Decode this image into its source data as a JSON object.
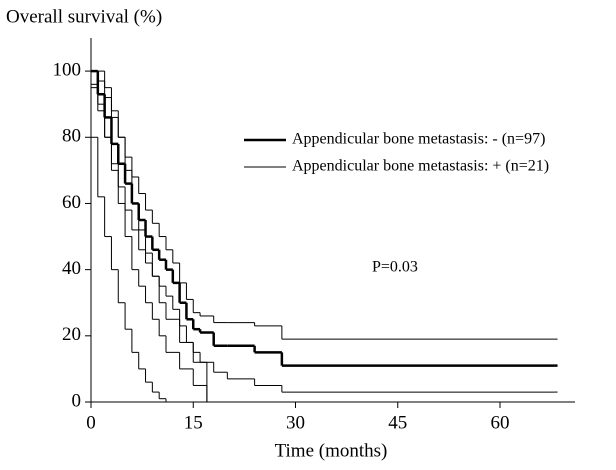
{
  "chart_data": {
    "type": "step",
    "ylabel": "Overall survival (%)",
    "xlabel": "Time (months)",
    "annotation": "P=0.03",
    "xlim": [
      0,
      71
    ],
    "ylim": [
      0,
      110
    ],
    "xticks": [
      0,
      15,
      30,
      45,
      60
    ],
    "yticks": [
      0,
      20,
      40,
      60,
      80,
      100
    ],
    "legend": "upper right",
    "series": [
      {
        "name": "Appendicular bone metastasis: - (n=97)",
        "color": "#000000",
        "width": 2.5,
        "x": [
          0,
          1,
          2,
          3,
          4,
          5,
          6,
          7,
          8,
          9,
          10,
          11,
          12,
          13,
          14,
          15,
          16,
          18,
          20,
          24,
          28,
          68
        ],
        "values": [
          100,
          93,
          86,
          78,
          72,
          66,
          60,
          55,
          50,
          46,
          43,
          40,
          36,
          30,
          25,
          22,
          21,
          17,
          17,
          15,
          11,
          11
        ]
      },
      {
        "name": "Appendicular bone metastasis: + (n=21)",
        "color": "#000000",
        "width": 1,
        "x": [
          0,
          1,
          2,
          3,
          4,
          5,
          6,
          7,
          8,
          9,
          10,
          11,
          13,
          15,
          17
        ],
        "values": [
          95,
          90,
          80,
          70,
          60,
          50,
          40,
          35,
          30,
          25,
          20,
          15,
          10,
          5,
          0
        ]
      },
      {
        "color": "#000000",
        "width": 1,
        "x": [
          0,
          1,
          2,
          3,
          4,
          5,
          6,
          7,
          8,
          9,
          10,
          11,
          12,
          13,
          14,
          15,
          16,
          18,
          20,
          24,
          28,
          68
        ],
        "values": [
          100,
          97,
          92,
          86,
          80,
          74,
          68,
          63,
          58,
          54,
          50,
          46,
          42,
          36,
          31,
          27,
          26,
          24,
          24,
          23,
          19,
          19
        ]
      },
      {
        "color": "#000000",
        "width": 1,
        "x": [
          0,
          1,
          2,
          3,
          4,
          5,
          6,
          7,
          8,
          9,
          10,
          11,
          12,
          13,
          14,
          15,
          16,
          18,
          20,
          24,
          28,
          68
        ],
        "values": [
          96,
          88,
          80,
          72,
          65,
          58,
          52,
          46,
          42,
          38,
          35,
          32,
          28,
          23,
          18,
          15,
          12,
          9,
          7,
          5,
          3,
          3
        ]
      },
      {
        "color": "#000000",
        "width": 1,
        "x": [
          0,
          1,
          2,
          3,
          4,
          5,
          6,
          7,
          8,
          9,
          10,
          11,
          13,
          15,
          17
        ],
        "values": [
          100,
          100,
          95,
          88,
          80,
          70,
          60,
          52,
          45,
          38,
          30,
          25,
          18,
          12,
          0
        ]
      },
      {
        "color": "#000000",
        "width": 1,
        "x": [
          0,
          1,
          2,
          3,
          4,
          5,
          6,
          7,
          8,
          9,
          10,
          11
        ],
        "values": [
          80,
          62,
          50,
          40,
          30,
          22,
          15,
          10,
          6,
          3,
          1,
          0
        ]
      }
    ]
  }
}
